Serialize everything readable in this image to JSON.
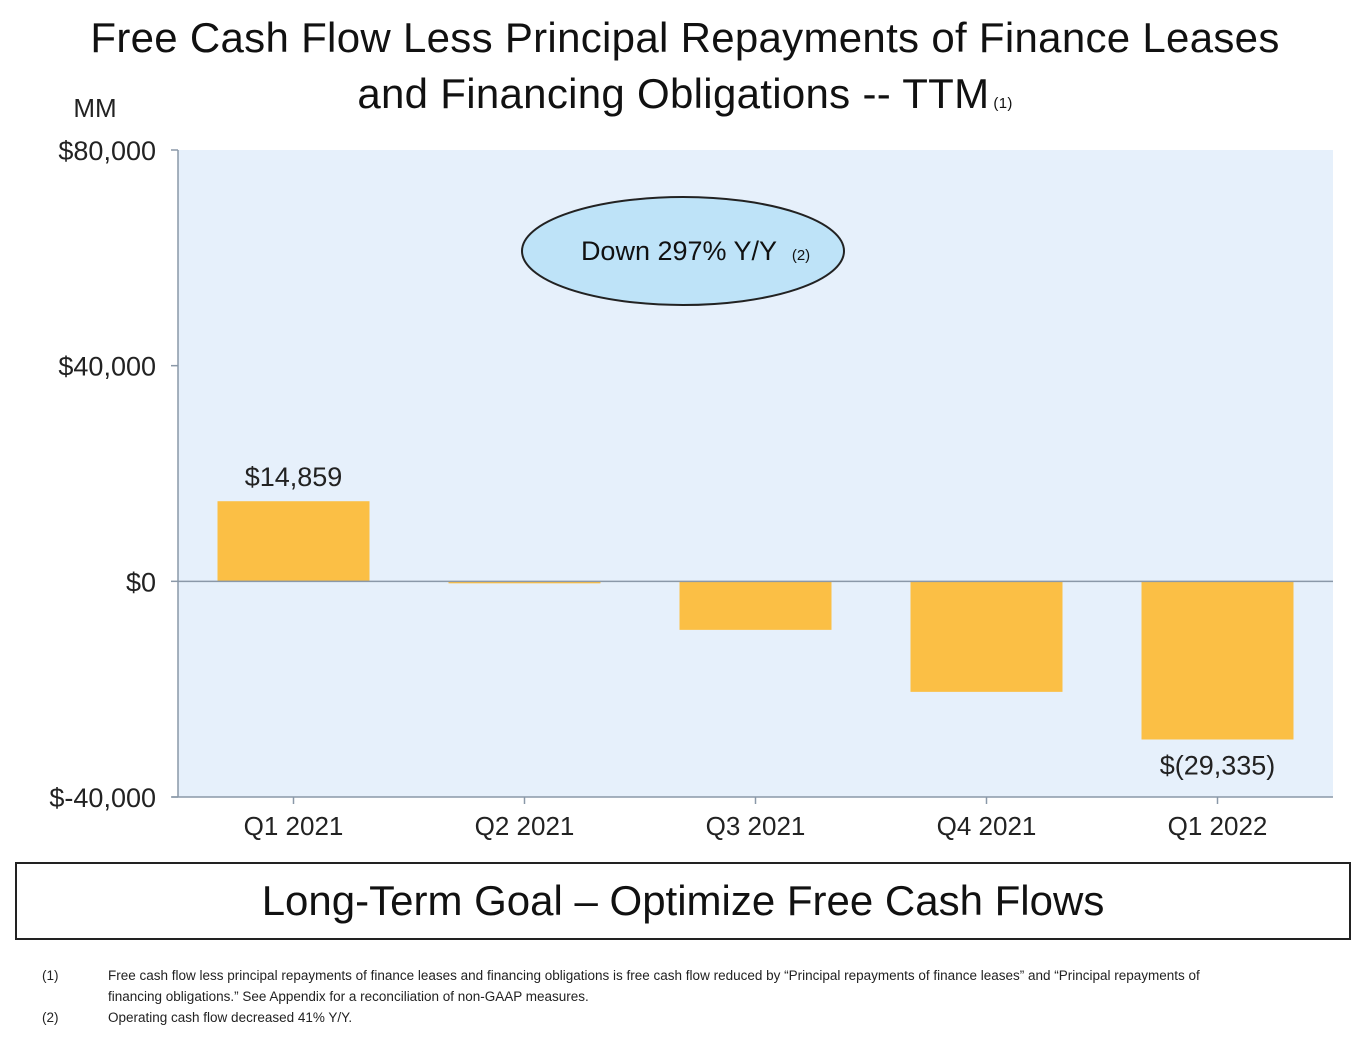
{
  "title": {
    "line1": "Free Cash Flow Less Principal Repayments of Finance Leases",
    "line2": "and Financing Obligations -- TTM",
    "footnote_ref": "(1)"
  },
  "chart_data": {
    "type": "bar",
    "ylabel": "MM",
    "categories": [
      "Q1 2021",
      "Q2 2021",
      "Q3 2021",
      "Q4 2021",
      "Q1 2022"
    ],
    "values": [
      14859,
      0,
      -9000,
      -20500,
      -29335
    ],
    "ylim": [
      -40000,
      80000
    ],
    "yticks": [
      80000,
      40000,
      0,
      -40000
    ],
    "ytick_labels": [
      "$80,000",
      "$40,000",
      "$0",
      "$-40,000"
    ],
    "data_labels": [
      {
        "index": 0,
        "text": "$14,859"
      },
      {
        "index": 4,
        "text": "$(29,335)"
      }
    ],
    "annotation": {
      "text": "Down 297% Y/Y",
      "ref": "(2)"
    },
    "colors": {
      "bar": "#FBBF45",
      "plot_bg": "#E6F0FB",
      "callout_fill": "#BEE3F8",
      "axis": "#8A98A8"
    }
  },
  "goal": "Long-Term Goal – Optimize Free Cash Flows",
  "footnotes": [
    {
      "num": "(1)",
      "text": "Free cash flow less principal repayments of finance leases and financing obligations is free cash flow reduced by “Principal repayments of finance leases” and “Principal repayments of financing obligations.” See Appendix for a reconciliation of non-GAAP measures."
    },
    {
      "num": "(2)",
      "text": "Operating cash flow decreased 41% Y/Y."
    }
  ]
}
